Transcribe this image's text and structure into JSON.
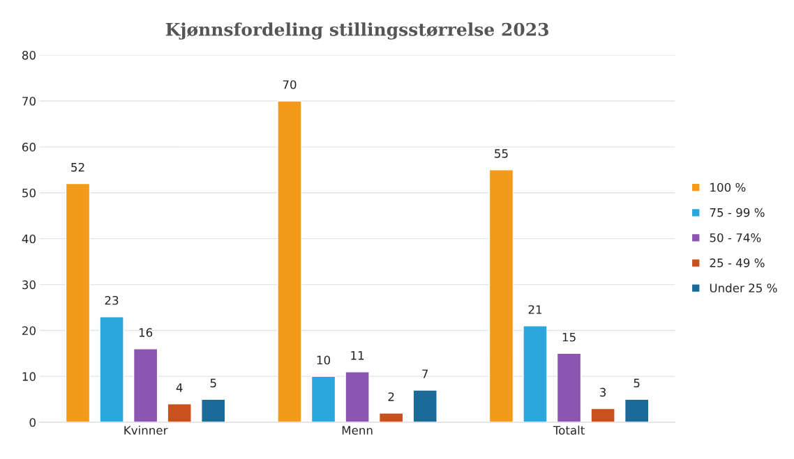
{
  "chart_data": {
    "type": "bar",
    "title": "Kjønnsfordeling stillingsstørrelse 2023",
    "categories": [
      "Kvinner",
      "Menn",
      "Totalt"
    ],
    "series": [
      {
        "name": "100 %",
        "color": "#f39a1b",
        "values": [
          52,
          70,
          55
        ]
      },
      {
        "name": "75 - 99 %",
        "color": "#2aa7dc",
        "values": [
          23,
          10,
          21
        ]
      },
      {
        "name": "50 - 74%",
        "color": "#8b55b0",
        "values": [
          16,
          11,
          15
        ]
      },
      {
        "name": "25 - 49 %",
        "color": "#c9511d",
        "values": [
          4,
          2,
          3
        ]
      },
      {
        "name": "Under 25 %",
        "color": "#1b6a98",
        "values": [
          5,
          7,
          5
        ]
      }
    ],
    "ylim": [
      0,
      80
    ],
    "yticks": [
      0,
      10,
      20,
      30,
      40,
      50,
      60,
      70,
      80
    ],
    "grid": "y",
    "legend": "right",
    "data_labels": true
  }
}
